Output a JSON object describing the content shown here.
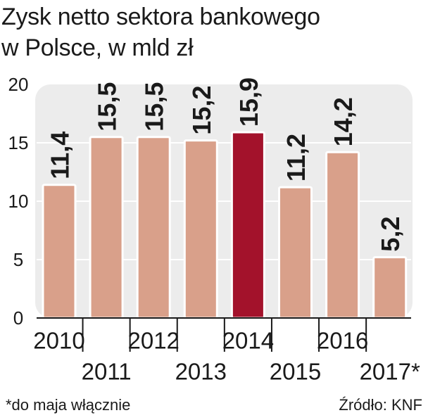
{
  "title_line1": "Zysk netto sektora bankowego",
  "title_line2": "w Polsce, w mld zł",
  "footnote": "*do maja włącznie",
  "source": "Źródło: KNF",
  "colors": {
    "bar": "#d9a08a",
    "highlight": "#a3122b",
    "plot_bg": "#ececec",
    "gridline": "#ffffff",
    "text": "#1a1a1a"
  },
  "chart_data": {
    "type": "bar",
    "title": "Zysk netto sektora bankowego w Polsce, w mld zł",
    "categories": [
      "2010",
      "2011",
      "2012",
      "2013",
      "2014",
      "2015",
      "2016",
      "2017*"
    ],
    "values": [
      11.4,
      15.5,
      15.5,
      15.2,
      15.9,
      11.2,
      14.2,
      5.2
    ],
    "value_labels": [
      "11,4",
      "15,5",
      "15,5",
      "15,2",
      "15,9",
      "11,2",
      "14,2",
      "5,2"
    ],
    "highlight_index": 4,
    "ylim": [
      0,
      20
    ],
    "yticks": [
      0,
      5,
      10,
      15,
      20
    ],
    "xlabel": "",
    "ylabel": "",
    "grid": true
  }
}
